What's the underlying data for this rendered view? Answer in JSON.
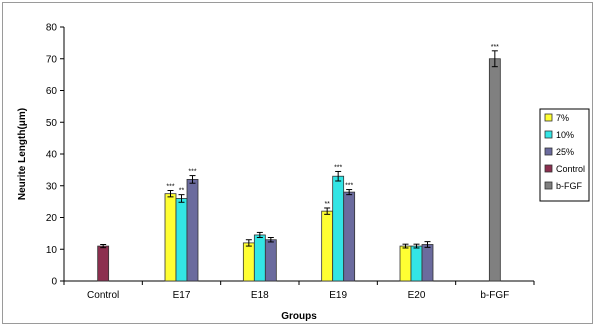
{
  "chart_data": {
    "type": "bar",
    "title": "",
    "xlabel": "Groups",
    "ylabel": "Neurite Length(μm)",
    "ylim": [
      0,
      80
    ],
    "yticks": [
      0,
      10,
      20,
      30,
      40,
      50,
      60,
      70,
      80
    ],
    "grid": false,
    "legend_position": "right",
    "categories": [
      "Control",
      "E17",
      "E18",
      "E19",
      "E20",
      "b-FGF"
    ],
    "series": [
      {
        "name": "7%",
        "color": "#ffff33",
        "values": [
          null,
          27.5,
          12,
          22,
          null,
          null
        ],
        "errors": [
          null,
          1,
          1,
          1,
          null,
          null
        ],
        "labels": [
          null,
          "***",
          null,
          "**",
          null,
          null
        ]
      },
      {
        "name": "10%",
        "color": "#33e5e5",
        "values": [
          null,
          26,
          14.5,
          33,
          null,
          null
        ],
        "errors": [
          null,
          1.2,
          0.8,
          1.5,
          null,
          null
        ],
        "labels": [
          null,
          "**",
          null,
          "***",
          null,
          null
        ]
      },
      {
        "name": "25%",
        "color": "#6b6b9e",
        "values": [
          null,
          32,
          13,
          28,
          null,
          null
        ],
        "errors": [
          null,
          1.2,
          0.7,
          0.8,
          null,
          null
        ],
        "labels": [
          null,
          "***",
          null,
          "***",
          null,
          null
        ]
      },
      {
        "name": "Control",
        "color": "#8c2f4f",
        "values": [
          11,
          null,
          null,
          null,
          null,
          null
        ],
        "errors": [
          0.5,
          null,
          null,
          null,
          null,
          null
        ],
        "labels": [
          null,
          null,
          null,
          null,
          null,
          null
        ]
      },
      {
        "name": "b-FGF",
        "color": "#808080",
        "values": [
          null,
          null,
          null,
          null,
          null,
          70
        ],
        "errors": [
          null,
          null,
          null,
          null,
          null,
          2.5
        ],
        "labels": [
          null,
          null,
          null,
          null,
          null,
          "***"
        ]
      }
    ],
    "e20_values": {
      "7%": 11,
      "10%": 11,
      "25%": 11.5
    },
    "e20_errors": {
      "7%": 0.6,
      "10%": 0.6,
      "25%": 0.9
    }
  }
}
